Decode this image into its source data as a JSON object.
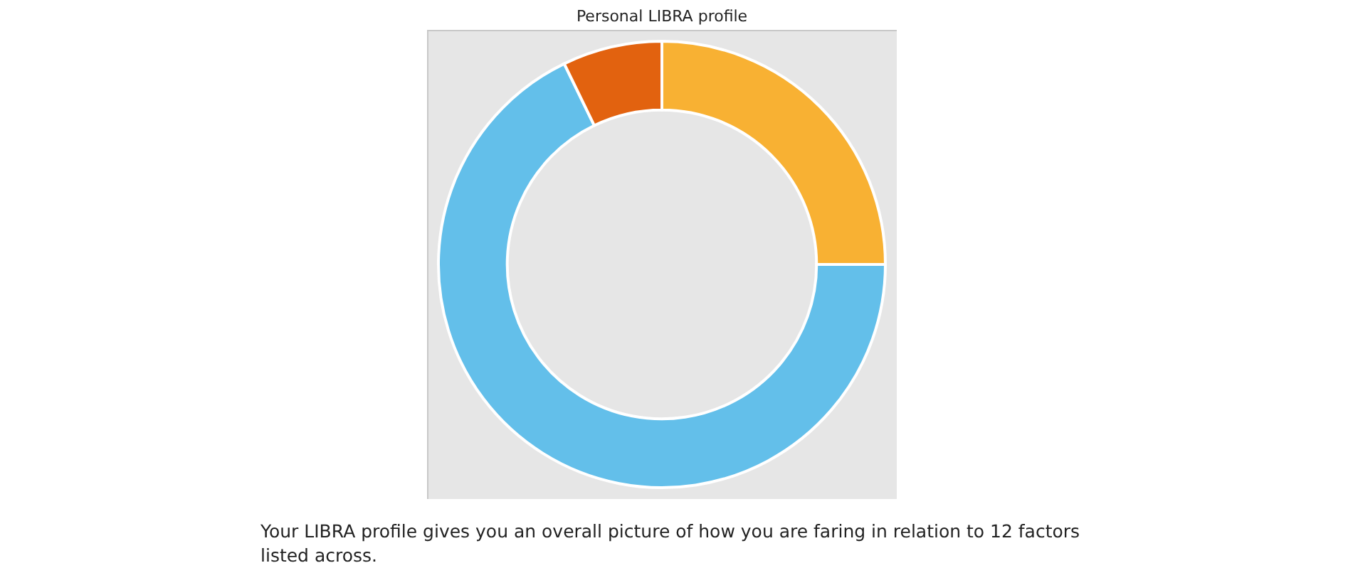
{
  "chart_data": {
    "type": "donut",
    "title": "Personal LIBRA profile",
    "categories": [
      null,
      null,
      null
    ],
    "values": [
      25,
      67.8,
      7.2
    ],
    "colors": [
      "#f8b133",
      "#63bfea",
      "#e2620f"
    ],
    "legend": false,
    "annotations": [
      "Your LIBRA profile gives you an overall picture of how you are faring in relation to 12 factors listed across."
    ]
  }
}
